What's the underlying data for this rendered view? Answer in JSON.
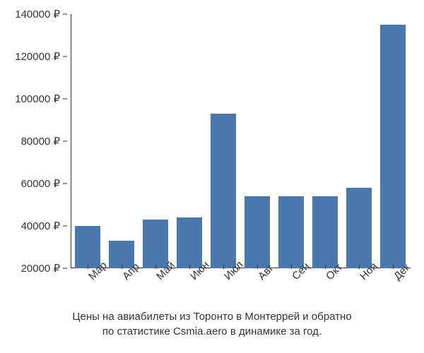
{
  "chart": {
    "type": "bar",
    "categories": [
      "Мар",
      "Апр",
      "Май",
      "Июн",
      "Июл",
      "Авг",
      "Сен",
      "Окт",
      "Ноя",
      "Дек"
    ],
    "values": [
      40000,
      33000,
      43000,
      44000,
      93000,
      54000,
      54000,
      54000,
      58000,
      135000
    ],
    "bar_color": "#4a76ab",
    "background_color": "#ffffff",
    "ylim_min": 20000,
    "ylim_max": 140000,
    "ytick_step": 20000,
    "y_tick_labels": [
      "20000 ₽",
      "40000 ₽",
      "60000 ₽",
      "80000 ₽",
      "100000 ₽",
      "120000 ₽",
      "140000 ₽"
    ],
    "y_tick_values": [
      20000,
      40000,
      60000,
      80000,
      100000,
      120000,
      140000
    ],
    "bar_width_ratio": 0.75,
    "axis_color": "#333333",
    "tick_fontsize": 15,
    "x_tick_rotation": -45
  },
  "caption": {
    "line1": "Цены на авиабилеты из Торонто в Монтеррей и обратно",
    "line2": "по статистике Csmia.aero в динамике за год.",
    "fontsize": 15,
    "color": "#333333"
  }
}
